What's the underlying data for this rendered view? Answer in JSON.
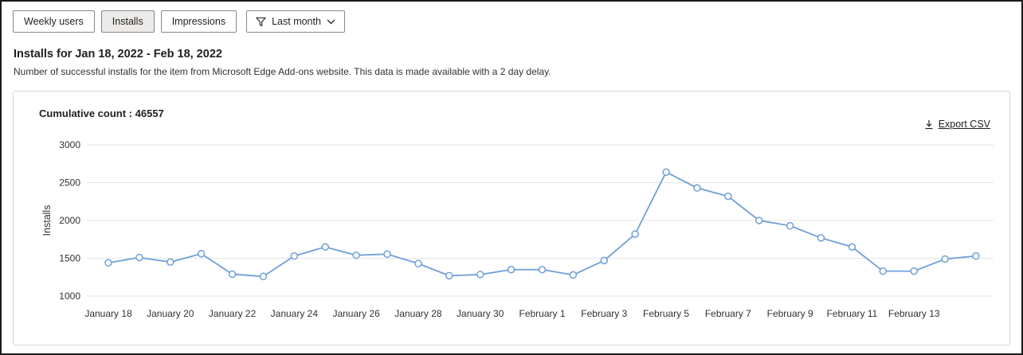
{
  "toolbar": {
    "buttons": [
      {
        "label": "Weekly users",
        "selected": false
      },
      {
        "label": "Installs",
        "selected": true
      },
      {
        "label": "Impressions",
        "selected": false
      }
    ],
    "filter": {
      "label": "Last month",
      "icon": "filter-funnel-icon"
    }
  },
  "header": {
    "title": "Installs for Jan 18, 2022 - Feb 18, 2022",
    "subtitle": "Number of successful installs for the item from Microsoft Edge Add-ons website. This data is made available with a 2 day delay."
  },
  "chart_card": {
    "cumulative_label": "Cumulative count :",
    "cumulative_value": "46557",
    "export_label": "Export CSV",
    "export_icon": "download-icon"
  },
  "chart_data": {
    "type": "line",
    "title": "Installs for Jan 18, 2022 - Feb 18, 2022",
    "ylabel": "Installs",
    "xlabel": "",
    "ylim": [
      1000,
      3000
    ],
    "yticks": [
      1000,
      1500,
      2000,
      2500,
      3000
    ],
    "grid": "horizontal",
    "legend": "none",
    "line_color": "#6f9fd9",
    "marker": "open-circle",
    "x": [
      "Jan 18",
      "Jan 19",
      "Jan 20",
      "Jan 21",
      "Jan 22",
      "Jan 23",
      "Jan 24",
      "Jan 25",
      "Jan 26",
      "Jan 27",
      "Jan 28",
      "Jan 29",
      "Jan 30",
      "Jan 31",
      "Feb 1",
      "Feb 2",
      "Feb 3",
      "Feb 4",
      "Feb 5",
      "Feb 6",
      "Feb 7",
      "Feb 8",
      "Feb 9",
      "Feb 10",
      "Feb 11",
      "Feb 12",
      "Feb 13",
      "Feb 14",
      "Feb 15"
    ],
    "values": [
      1440,
      1510,
      1450,
      1560,
      1290,
      1260,
      1530,
      1650,
      1540,
      1555,
      1430,
      1270,
      1285,
      1350,
      1350,
      1280,
      1470,
      1820,
      2640,
      2430,
      2320,
      2000,
      1930,
      1770,
      1650,
      1330,
      1330,
      1490,
      1530
    ],
    "x_tick_labels": [
      "January 18",
      "January 20",
      "January 22",
      "January 24",
      "January 26",
      "January 28",
      "January 30",
      "February 1",
      "February 3",
      "February 5",
      "February 7",
      "February 9",
      "February 11",
      "February 13"
    ],
    "x_tick_every": 2
  }
}
